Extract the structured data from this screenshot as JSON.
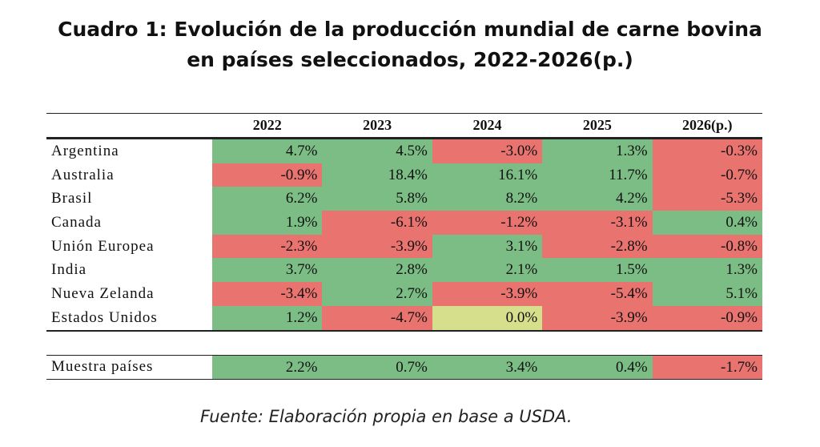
{
  "title_line1": "Cuadro 1: Evolución de la producción mundial de carne bovina",
  "title_line2": "en países seleccionados, 2022-2026(p.)",
  "source": "Fuente: Elaboración propia en base a USDA.",
  "colors": {
    "positive": "#7bbd84",
    "negative": "#e8736f",
    "zero": "#d6df8c"
  },
  "chart_data": {
    "type": "table",
    "title": "Cuadro 1: Evolución de la producción mundial de carne bovina en países seleccionados, 2022-2026(p.)",
    "columns": [
      "2022",
      "2023",
      "2024",
      "2025",
      "2026(p.)"
    ],
    "rows": [
      {
        "label": "Argentina",
        "values": [
          "4.7%",
          "4.5%",
          "-3.0%",
          "1.3%",
          "-0.3%"
        ]
      },
      {
        "label": "Australia",
        "values": [
          "-0.9%",
          "18.4%",
          "16.1%",
          "11.7%",
          "-0.7%"
        ]
      },
      {
        "label": "Brasil",
        "values": [
          "6.2%",
          "5.8%",
          "8.2%",
          "4.2%",
          "-5.3%"
        ]
      },
      {
        "label": "Canada",
        "values": [
          "1.9%",
          "-6.1%",
          "-1.2%",
          "-3.1%",
          "0.4%"
        ]
      },
      {
        "label": "Unión Europea",
        "values": [
          "-2.3%",
          "-3.9%",
          "3.1%",
          "-2.8%",
          "-0.8%"
        ]
      },
      {
        "label": "India",
        "values": [
          "3.7%",
          "2.8%",
          "2.1%",
          "1.5%",
          "1.3%"
        ]
      },
      {
        "label": "Nueva Zelanda",
        "values": [
          "-3.4%",
          "2.7%",
          "-3.9%",
          "-5.4%",
          "5.1%"
        ]
      },
      {
        "label": "Estados Unidos",
        "values": [
          "1.2%",
          "-4.7%",
          "0.0%",
          "-3.9%",
          "-0.9%"
        ]
      }
    ],
    "total": {
      "label": "Muestra países",
      "values": [
        "2.2%",
        "0.7%",
        "3.4%",
        "0.4%",
        "-1.7%"
      ]
    }
  }
}
